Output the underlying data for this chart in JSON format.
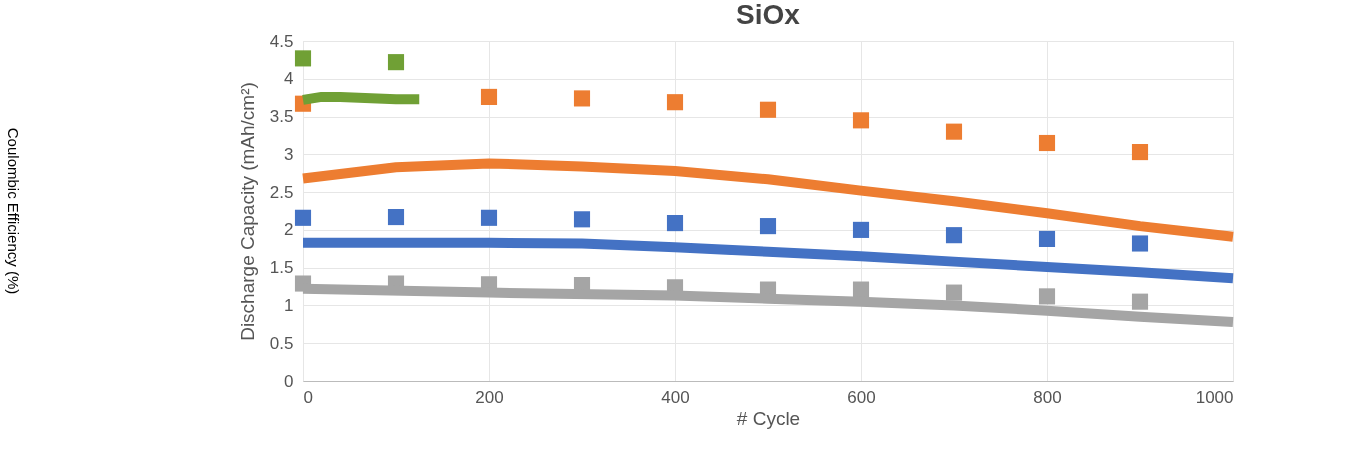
{
  "chart_data": {
    "type": "scatter",
    "title": "SiOx",
    "xlabel": "# Cycle",
    "ylabel": "Discharge Capacity (mAh/cm²)",
    "annotations": [
      "Coulombic Efficiency (%)"
    ],
    "xlim": [
      0,
      1000
    ],
    "xticks": [
      0,
      200,
      400,
      600,
      800,
      1000
    ],
    "ylim": [
      0,
      4.5
    ],
    "yticks": [
      0,
      0.5,
      1,
      1.5,
      2,
      2.5,
      3,
      3.5,
      4,
      4.5
    ],
    "grid": true,
    "marker": "square",
    "series": [
      {
        "color": "#70a035",
        "x": [
          0,
          100
        ],
        "values": [
          4.27,
          4.22
        ]
      },
      {
        "type": "line",
        "marker": "none",
        "color": "#70a035",
        "x": [
          0,
          20,
          40,
          60,
          80,
          100,
          125
        ],
        "values": [
          3.72,
          3.76,
          3.76,
          3.75,
          3.74,
          3.73,
          3.73
        ]
      },
      {
        "color": "#ed7d31",
        "x": [
          0,
          200,
          300,
          400,
          500,
          600,
          700,
          800,
          900
        ],
        "values": [
          3.67,
          3.76,
          3.74,
          3.69,
          3.59,
          3.45,
          3.3,
          3.15,
          3.03
        ]
      },
      {
        "type": "line",
        "marker": "none",
        "color": "#ed7d31",
        "x": [
          0,
          100,
          200,
          300,
          400,
          500,
          600,
          700,
          800,
          900,
          1000
        ],
        "values": [
          2.68,
          2.83,
          2.88,
          2.84,
          2.78,
          2.67,
          2.52,
          2.38,
          2.22,
          2.05,
          1.91
        ]
      },
      {
        "color": "#4472c4",
        "x": [
          0,
          100,
          200,
          300,
          400,
          500,
          600,
          700,
          800,
          900
        ],
        "values": [
          2.16,
          2.17,
          2.16,
          2.14,
          2.09,
          2.05,
          2.0,
          1.93,
          1.88,
          1.82
        ]
      },
      {
        "type": "line",
        "marker": "none",
        "color": "#4472c4",
        "x": [
          0,
          200,
          300,
          400,
          500,
          600,
          700,
          800,
          900,
          1000
        ],
        "values": [
          1.83,
          1.83,
          1.82,
          1.77,
          1.71,
          1.65,
          1.58,
          1.51,
          1.44,
          1.36
        ]
      },
      {
        "color": "#a5a5a5",
        "x": [
          0,
          100,
          200,
          300,
          400,
          500,
          600,
          700,
          800,
          900
        ],
        "values": [
          1.29,
          1.29,
          1.28,
          1.27,
          1.24,
          1.21,
          1.21,
          1.17,
          1.12,
          1.05
        ]
      },
      {
        "type": "line",
        "marker": "none",
        "color": "#a5a5a5",
        "x": [
          0,
          200,
          400,
          500,
          600,
          700,
          800,
          900,
          1000
        ],
        "values": [
          1.22,
          1.17,
          1.13,
          1.09,
          1.05,
          1.0,
          0.93,
          0.85,
          0.78
        ]
      }
    ]
  }
}
